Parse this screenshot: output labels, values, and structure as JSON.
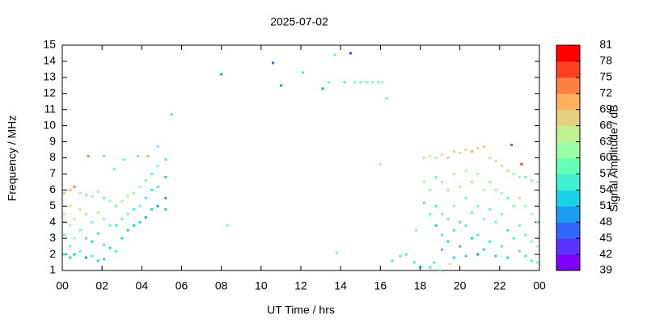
{
  "chart_data": {
    "type": "scatter",
    "title": "2025-07-02",
    "xlabel": "UT Time / hrs",
    "ylabel": "Frequency / MHz",
    "colorbar_label": "Signal Amplitude / dB",
    "xlim": [
      0,
      24
    ],
    "xticks": [
      {
        "value": 0,
        "label": "00"
      },
      {
        "value": 2,
        "label": "02"
      },
      {
        "value": 4,
        "label": "04"
      },
      {
        "value": 6,
        "label": "06"
      },
      {
        "value": 8,
        "label": "08"
      },
      10,
      12,
      14,
      16,
      18,
      20,
      22,
      {
        "value": 24,
        "label": "00"
      }
    ],
    "ylim": [
      1,
      15
    ],
    "yticks": [
      1,
      2,
      3,
      4,
      5,
      6,
      7,
      8,
      9,
      10,
      11,
      12,
      13,
      14,
      15
    ],
    "clim": [
      39,
      81
    ],
    "cticks": [
      39,
      42,
      45,
      48,
      51,
      54,
      57,
      60,
      63,
      66,
      69,
      72,
      75,
      78,
      81
    ],
    "colors": [
      "#8000ff",
      "#5b33ff",
      "#3366ff",
      "#1a9ef0",
      "#1ad2e6",
      "#40f0d0",
      "#66ffb3",
      "#99ffa0",
      "#c0f090",
      "#e6d080",
      "#ffb060",
      "#ff8040",
      "#ff4020",
      "#ff0000"
    ],
    "points": [
      {
        "x": 0.1,
        "y": 5.8,
        "value": 66
      },
      {
        "x": 0.1,
        "y": 4.5,
        "value": 63
      },
      {
        "x": 0.1,
        "y": 3.2,
        "value": 57
      },
      {
        "x": 0.1,
        "y": 2.0,
        "value": 54
      },
      {
        "x": 0.4,
        "y": 6.0,
        "value": 70
      },
      {
        "x": 0.4,
        "y": 5.0,
        "value": 66
      },
      {
        "x": 0.4,
        "y": 3.8,
        "value": 60
      },
      {
        "x": 0.4,
        "y": 2.5,
        "value": 57
      },
      {
        "x": 0.4,
        "y": 1.8,
        "value": 51
      },
      {
        "x": 0.6,
        "y": 6.2,
        "value": 73
      },
      {
        "x": 0.6,
        "y": 4.2,
        "value": 63
      },
      {
        "x": 0.6,
        "y": 3.0,
        "value": 60
      },
      {
        "x": 0.6,
        "y": 2.0,
        "value": 51
      },
      {
        "x": 0.9,
        "y": 5.8,
        "value": 60
      },
      {
        "x": 0.9,
        "y": 4.8,
        "value": 63
      },
      {
        "x": 0.9,
        "y": 3.5,
        "value": 57
      },
      {
        "x": 0.9,
        "y": 2.2,
        "value": 54
      },
      {
        "x": 1.2,
        "y": 5.7,
        "value": 57
      },
      {
        "x": 1.2,
        "y": 4.5,
        "value": 60
      },
      {
        "x": 1.2,
        "y": 3.0,
        "value": 54
      },
      {
        "x": 1.2,
        "y": 1.8,
        "value": 48
      },
      {
        "x": 1.5,
        "y": 5.6,
        "value": 60
      },
      {
        "x": 1.5,
        "y": 4.0,
        "value": 57
      },
      {
        "x": 1.5,
        "y": 2.8,
        "value": 51
      },
      {
        "x": 1.5,
        "y": 1.9,
        "value": 54
      },
      {
        "x": 1.8,
        "y": 5.9,
        "value": 60
      },
      {
        "x": 1.8,
        "y": 4.6,
        "value": 63
      },
      {
        "x": 1.8,
        "y": 3.3,
        "value": 54
      },
      {
        "x": 1.8,
        "y": 1.6,
        "value": 51
      },
      {
        "x": 2.1,
        "y": 5.5,
        "value": 57
      },
      {
        "x": 2.1,
        "y": 4.2,
        "value": 60
      },
      {
        "x": 2.1,
        "y": 2.6,
        "value": 54
      },
      {
        "x": 2.1,
        "y": 1.7,
        "value": 51
      },
      {
        "x": 2.4,
        "y": 5.3,
        "value": 60
      },
      {
        "x": 2.4,
        "y": 3.8,
        "value": 57
      },
      {
        "x": 2.4,
        "y": 2.4,
        "value": 51
      },
      {
        "x": 2.7,
        "y": 5.0,
        "value": 57
      },
      {
        "x": 2.7,
        "y": 3.8,
        "value": 54
      },
      {
        "x": 2.7,
        "y": 2.2,
        "value": 54
      },
      {
        "x": 3.0,
        "y": 5.3,
        "value": 60
      },
      {
        "x": 3.0,
        "y": 4.2,
        "value": 57
      },
      {
        "x": 3.0,
        "y": 3.0,
        "value": 51
      },
      {
        "x": 3.3,
        "y": 5.6,
        "value": 63
      },
      {
        "x": 3.3,
        "y": 4.5,
        "value": 57
      },
      {
        "x": 3.3,
        "y": 3.5,
        "value": 51
      },
      {
        "x": 3.6,
        "y": 5.8,
        "value": 60
      },
      {
        "x": 3.6,
        "y": 4.8,
        "value": 54
      },
      {
        "x": 3.6,
        "y": 3.8,
        "value": 51
      },
      {
        "x": 3.9,
        "y": 6.2,
        "value": 60
      },
      {
        "x": 3.9,
        "y": 5.0,
        "value": 57
      },
      {
        "x": 3.9,
        "y": 4.0,
        "value": 51
      },
      {
        "x": 4.2,
        "y": 6.6,
        "value": 57
      },
      {
        "x": 4.2,
        "y": 5.5,
        "value": 54
      },
      {
        "x": 4.2,
        "y": 4.3,
        "value": 48
      },
      {
        "x": 4.5,
        "y": 7.0,
        "value": 57
      },
      {
        "x": 4.5,
        "y": 6.0,
        "value": 54
      },
      {
        "x": 4.5,
        "y": 4.8,
        "value": 51
      },
      {
        "x": 4.8,
        "y": 7.5,
        "value": 57
      },
      {
        "x": 4.8,
        "y": 6.2,
        "value": 54
      },
      {
        "x": 4.8,
        "y": 5.0,
        "value": 48
      },
      {
        "x": 5.2,
        "y": 7.9,
        "value": 54
      },
      {
        "x": 5.2,
        "y": 6.8,
        "value": 51
      },
      {
        "x": 5.2,
        "y": 5.5,
        "value": 48
      },
      {
        "x": 5.2,
        "y": 4.8,
        "value": 51
      },
      {
        "x": 1.3,
        "y": 8.1,
        "value": 73
      },
      {
        "x": 2.1,
        "y": 8.1,
        "value": 57
      },
      {
        "x": 2.6,
        "y": 7.3,
        "value": 57
      },
      {
        "x": 3.1,
        "y": 7.9,
        "value": 57
      },
      {
        "x": 3.8,
        "y": 8.1,
        "value": 57
      },
      {
        "x": 4.3,
        "y": 8.1,
        "value": 69
      },
      {
        "x": 4.8,
        "y": 8.7,
        "value": 57
      },
      {
        "x": 5.5,
        "y": 10.7,
        "value": 54
      },
      {
        "x": 8.0,
        "y": 13.2,
        "value": 48
      },
      {
        "x": 8.3,
        "y": 3.8,
        "value": 57
      },
      {
        "x": 10.6,
        "y": 13.9,
        "value": 45
      },
      {
        "x": 11.0,
        "y": 12.5,
        "value": 48
      },
      {
        "x": 12.1,
        "y": 13.3,
        "value": 54
      },
      {
        "x": 13.1,
        "y": 12.3,
        "value": 48
      },
      {
        "x": 13.4,
        "y": 12.7,
        "value": 57
      },
      {
        "x": 13.7,
        "y": 14.4,
        "value": 57
      },
      {
        "x": 14.2,
        "y": 12.7,
        "value": 54
      },
      {
        "x": 14.5,
        "y": 14.5,
        "value": 42
      },
      {
        "x": 14.7,
        "y": 12.7,
        "value": 57
      },
      {
        "x": 15.0,
        "y": 12.7,
        "value": 57
      },
      {
        "x": 15.3,
        "y": 12.7,
        "value": 57
      },
      {
        "x": 15.6,
        "y": 12.7,
        "value": 57
      },
      {
        "x": 15.9,
        "y": 12.7,
        "value": 57
      },
      {
        "x": 16.1,
        "y": 12.7,
        "value": 60
      },
      {
        "x": 16.3,
        "y": 11.7,
        "value": 57
      },
      {
        "x": 16.0,
        "y": 7.6,
        "value": 63
      },
      {
        "x": 13.8,
        "y": 2.1,
        "value": 57
      },
      {
        "x": 16.6,
        "y": 1.6,
        "value": 54
      },
      {
        "x": 17.0,
        "y": 1.9,
        "value": 54
      },
      {
        "x": 17.3,
        "y": 2.0,
        "value": 54
      },
      {
        "x": 17.7,
        "y": 1.5,
        "value": 54
      },
      {
        "x": 17.8,
        "y": 3.5,
        "value": 57
      },
      {
        "x": 18.0,
        "y": 1.2,
        "value": 48
      },
      {
        "x": 18.5,
        "y": 1.2,
        "value": 54
      },
      {
        "x": 18.7,
        "y": 1.5,
        "value": 54
      },
      {
        "x": 19.0,
        "y": 1.0,
        "value": 54
      },
      {
        "x": 19.5,
        "y": 1.4,
        "value": 63
      },
      {
        "x": 22.6,
        "y": 8.8,
        "value": 75
      },
      {
        "x": 23.1,
        "y": 7.6,
        "value": 75
      },
      {
        "x": 18.2,
        "y": 8.0,
        "value": 63
      },
      {
        "x": 18.2,
        "y": 6.5,
        "value": 60
      },
      {
        "x": 18.2,
        "y": 5.2,
        "value": 54
      },
      {
        "x": 18.5,
        "y": 8.1,
        "value": 63
      },
      {
        "x": 18.5,
        "y": 6.0,
        "value": 60
      },
      {
        "x": 18.5,
        "y": 4.5,
        "value": 57
      },
      {
        "x": 18.8,
        "y": 8.0,
        "value": 60
      },
      {
        "x": 18.8,
        "y": 6.8,
        "value": 57
      },
      {
        "x": 18.8,
        "y": 5.0,
        "value": 54
      },
      {
        "x": 18.8,
        "y": 3.8,
        "value": 51
      },
      {
        "x": 19.1,
        "y": 8.2,
        "value": 63
      },
      {
        "x": 19.1,
        "y": 6.5,
        "value": 60
      },
      {
        "x": 19.1,
        "y": 4.5,
        "value": 57
      },
      {
        "x": 19.1,
        "y": 3.2,
        "value": 54
      },
      {
        "x": 19.1,
        "y": 2.3,
        "value": 51
      },
      {
        "x": 19.4,
        "y": 8.0,
        "value": 66
      },
      {
        "x": 19.4,
        "y": 6.0,
        "value": 63
      },
      {
        "x": 19.4,
        "y": 4.2,
        "value": 57
      },
      {
        "x": 19.4,
        "y": 2.8,
        "value": 51
      },
      {
        "x": 19.7,
        "y": 8.4,
        "value": 66
      },
      {
        "x": 19.7,
        "y": 7.0,
        "value": 63
      },
      {
        "x": 19.7,
        "y": 5.0,
        "value": 60
      },
      {
        "x": 19.7,
        "y": 3.5,
        "value": 54
      },
      {
        "x": 19.7,
        "y": 1.8,
        "value": 51
      },
      {
        "x": 20.0,
        "y": 8.3,
        "value": 63
      },
      {
        "x": 20.0,
        "y": 6.2,
        "value": 60
      },
      {
        "x": 20.0,
        "y": 4.0,
        "value": 54
      },
      {
        "x": 20.0,
        "y": 2.5,
        "value": 51
      },
      {
        "x": 20.3,
        "y": 8.5,
        "value": 66
      },
      {
        "x": 20.3,
        "y": 7.2,
        "value": 63
      },
      {
        "x": 20.3,
        "y": 5.5,
        "value": 57
      },
      {
        "x": 20.3,
        "y": 3.8,
        "value": 54
      },
      {
        "x": 20.3,
        "y": 1.9,
        "value": 51
      },
      {
        "x": 20.6,
        "y": 8.4,
        "value": 69
      },
      {
        "x": 20.6,
        "y": 6.5,
        "value": 63
      },
      {
        "x": 20.6,
        "y": 4.6,
        "value": 57
      },
      {
        "x": 20.6,
        "y": 3.0,
        "value": 51
      },
      {
        "x": 20.9,
        "y": 8.6,
        "value": 66
      },
      {
        "x": 20.9,
        "y": 7.0,
        "value": 60
      },
      {
        "x": 20.9,
        "y": 5.0,
        "value": 57
      },
      {
        "x": 20.9,
        "y": 3.2,
        "value": 54
      },
      {
        "x": 20.9,
        "y": 2.0,
        "value": 48
      },
      {
        "x": 21.2,
        "y": 8.7,
        "value": 66
      },
      {
        "x": 21.2,
        "y": 6.0,
        "value": 63
      },
      {
        "x": 21.2,
        "y": 4.2,
        "value": 57
      },
      {
        "x": 21.2,
        "y": 2.3,
        "value": 51
      },
      {
        "x": 21.5,
        "y": 8.0,
        "value": 63
      },
      {
        "x": 21.5,
        "y": 6.5,
        "value": 60
      },
      {
        "x": 21.5,
        "y": 4.8,
        "value": 57
      },
      {
        "x": 21.5,
        "y": 2.8,
        "value": 54
      },
      {
        "x": 21.8,
        "y": 7.8,
        "value": 63
      },
      {
        "x": 21.8,
        "y": 6.0,
        "value": 60
      },
      {
        "x": 21.8,
        "y": 4.0,
        "value": 57
      },
      {
        "x": 21.8,
        "y": 1.9,
        "value": 51
      },
      {
        "x": 22.1,
        "y": 7.5,
        "value": 63
      },
      {
        "x": 22.1,
        "y": 5.8,
        "value": 60
      },
      {
        "x": 22.1,
        "y": 4.5,
        "value": 57
      },
      {
        "x": 22.1,
        "y": 2.5,
        "value": 54
      },
      {
        "x": 22.4,
        "y": 7.2,
        "value": 63
      },
      {
        "x": 22.4,
        "y": 5.5,
        "value": 57
      },
      {
        "x": 22.4,
        "y": 3.5,
        "value": 54
      },
      {
        "x": 22.4,
        "y": 1.8,
        "value": 51
      },
      {
        "x": 22.7,
        "y": 7.0,
        "value": 60
      },
      {
        "x": 22.7,
        "y": 5.0,
        "value": 57
      },
      {
        "x": 22.7,
        "y": 3.0,
        "value": 54
      },
      {
        "x": 23.0,
        "y": 6.8,
        "value": 60
      },
      {
        "x": 23.0,
        "y": 5.5,
        "value": 63
      },
      {
        "x": 23.0,
        "y": 3.8,
        "value": 57
      },
      {
        "x": 23.0,
        "y": 2.2,
        "value": 54
      },
      {
        "x": 23.3,
        "y": 6.8,
        "value": 57
      },
      {
        "x": 23.3,
        "y": 5.0,
        "value": 60
      },
      {
        "x": 23.3,
        "y": 3.2,
        "value": 57
      },
      {
        "x": 23.3,
        "y": 1.9,
        "value": 54
      },
      {
        "x": 23.6,
        "y": 6.6,
        "value": 57
      },
      {
        "x": 23.6,
        "y": 4.5,
        "value": 60
      },
      {
        "x": 23.6,
        "y": 2.8,
        "value": 57
      },
      {
        "x": 23.6,
        "y": 1.6,
        "value": 54
      },
      {
        "x": 23.9,
        "y": 6.5,
        "value": 60
      },
      {
        "x": 23.9,
        "y": 4.0,
        "value": 57
      },
      {
        "x": 23.9,
        "y": 2.5,
        "value": 60
      },
      {
        "x": 23.9,
        "y": 1.5,
        "value": 57
      }
    ]
  }
}
